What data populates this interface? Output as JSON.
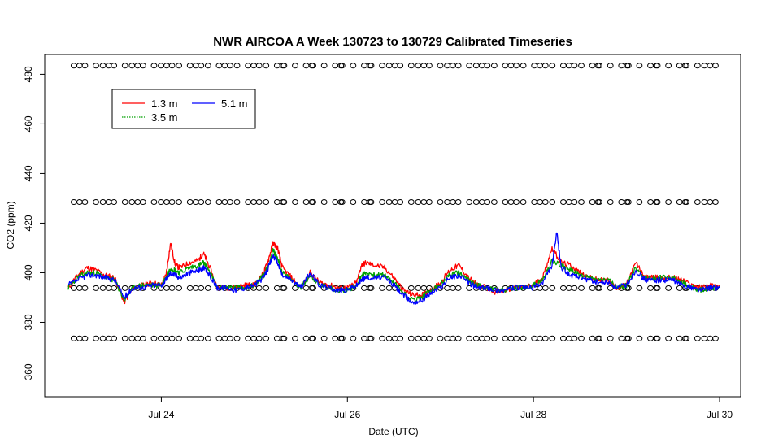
{
  "chart_data": {
    "type": "line",
    "title": "NWR AIRCOA A  Week 130723 to 130729  Calibrated Timeseries",
    "xlabel": "Date (UTC)",
    "ylabel": "CO2 (ppm)",
    "x_unit": "days (Jul 2013)",
    "xlim": [
      23.0,
      30.0
    ],
    "ylim": [
      350,
      488
    ],
    "x_ticks": [
      {
        "value": 24,
        "label": "Jul 24"
      },
      {
        "value": 26,
        "label": "Jul 26"
      },
      {
        "value": 28,
        "label": "Jul 28"
      },
      {
        "value": 30,
        "label": "Jul 30"
      }
    ],
    "y_ticks": [
      360,
      380,
      400,
      420,
      440,
      460,
      480
    ],
    "grid": false,
    "legend": {
      "placement": "top-left",
      "entries": [
        {
          "name": "1.3 m",
          "color": "#ff0000"
        },
        {
          "name": "3.5 m",
          "color": "#00a000",
          "style": "dotted"
        },
        {
          "name": "5.1 m",
          "color": "#0000ff"
        }
      ]
    },
    "calibration_levels": [
      483.5,
      428.5,
      393.8,
      373.5
    ],
    "calibration_marker": "open-circle",
    "series": [
      {
        "name": "1.3 m",
        "color": "#ff0000",
        "x": [
          23.0,
          23.1,
          23.2,
          23.3,
          23.4,
          23.5,
          23.6,
          23.7,
          23.8,
          23.9,
          24.0,
          24.05,
          24.1,
          24.15,
          24.2,
          24.3,
          24.4,
          24.45,
          24.5,
          24.6,
          24.7,
          24.8,
          24.9,
          25.0,
          25.1,
          25.15,
          25.2,
          25.25,
          25.3,
          25.4,
          25.5,
          25.6,
          25.7,
          25.8,
          25.9,
          26.0,
          26.1,
          26.15,
          26.2,
          26.3,
          26.4,
          26.5,
          26.6,
          26.7,
          26.8,
          26.9,
          27.0,
          27.1,
          27.2,
          27.3,
          27.4,
          27.5,
          27.6,
          27.7,
          27.8,
          27.9,
          28.0,
          28.1,
          28.2,
          28.3,
          28.4,
          28.5,
          28.6,
          28.7,
          28.8,
          28.9,
          29.0,
          29.1,
          29.2,
          29.3,
          29.4,
          29.5,
          29.6,
          29.7,
          29.8,
          29.9,
          30.0
        ],
        "y": [
          394,
          399,
          402,
          401,
          399,
          398,
          388,
          394,
          395,
          396,
          395,
          399,
          412,
          403,
          402,
          404,
          405,
          408,
          404,
          394,
          394,
          394,
          395,
          395,
          400,
          405,
          412,
          410,
          402,
          398,
          394,
          400,
          396,
          395,
          394,
          394,
          396,
          403,
          404,
          403,
          402,
          398,
          393,
          391,
          391,
          393,
          396,
          401,
          403,
          398,
          395,
          394,
          392,
          393,
          394,
          394,
          395,
          398,
          410,
          404,
          403,
          400,
          398,
          397,
          397,
          394,
          395,
          404,
          398,
          398,
          398,
          398,
          397,
          395,
          394,
          395,
          394
        ]
      },
      {
        "name": "3.5 m",
        "color": "#00a000",
        "x": [
          23.0,
          23.1,
          23.2,
          23.3,
          23.4,
          23.5,
          23.6,
          23.7,
          23.8,
          23.9,
          24.0,
          24.05,
          24.1,
          24.15,
          24.2,
          24.3,
          24.4,
          24.45,
          24.5,
          24.6,
          24.7,
          24.8,
          24.9,
          25.0,
          25.1,
          25.15,
          25.2,
          25.25,
          25.3,
          25.4,
          25.5,
          25.6,
          25.7,
          25.8,
          25.9,
          26.0,
          26.1,
          26.15,
          26.2,
          26.3,
          26.4,
          26.5,
          26.6,
          26.7,
          26.8,
          26.9,
          27.0,
          27.1,
          27.2,
          27.3,
          27.4,
          27.5,
          27.6,
          27.7,
          27.8,
          27.9,
          28.0,
          28.1,
          28.2,
          28.3,
          28.4,
          28.5,
          28.6,
          28.7,
          28.8,
          28.9,
          29.0,
          29.1,
          29.2,
          29.3,
          29.4,
          29.5,
          29.6,
          29.7,
          29.8,
          29.9,
          30.0
        ],
        "y": [
          394,
          398,
          400,
          400,
          398,
          397,
          389,
          394,
          395,
          395,
          395,
          398,
          402,
          401,
          400,
          402,
          403,
          404,
          402,
          394,
          394,
          394,
          394,
          395,
          399,
          403,
          409,
          406,
          400,
          397,
          394,
          399,
          395,
          394,
          393,
          393,
          395,
          399,
          400,
          399,
          399,
          396,
          392,
          389,
          390,
          393,
          395,
          399,
          400,
          397,
          395,
          394,
          393,
          393,
          394,
          394,
          395,
          397,
          405,
          403,
          401,
          399,
          398,
          397,
          397,
          394,
          395,
          402,
          398,
          398,
          398,
          398,
          396,
          394,
          393,
          394,
          394
        ]
      },
      {
        "name": "5.1 m",
        "color": "#0000ff",
        "x": [
          23.0,
          23.1,
          23.2,
          23.3,
          23.4,
          23.5,
          23.6,
          23.7,
          23.8,
          23.9,
          24.0,
          24.05,
          24.1,
          24.15,
          24.2,
          24.3,
          24.4,
          24.45,
          24.5,
          24.6,
          24.7,
          24.8,
          24.9,
          25.0,
          25.1,
          25.15,
          25.2,
          25.25,
          25.3,
          25.4,
          25.5,
          25.6,
          25.7,
          25.8,
          25.9,
          26.0,
          26.1,
          26.15,
          26.2,
          26.3,
          26.4,
          26.5,
          26.6,
          26.7,
          26.8,
          26.9,
          27.0,
          27.1,
          27.2,
          27.3,
          27.4,
          27.5,
          27.6,
          27.7,
          27.8,
          27.9,
          28.0,
          28.1,
          28.2,
          28.25,
          28.3,
          28.4,
          28.5,
          28.6,
          28.7,
          28.8,
          28.9,
          29.0,
          29.1,
          29.2,
          29.3,
          29.4,
          29.5,
          29.6,
          29.7,
          29.8,
          29.9,
          30.0
        ],
        "y": [
          395,
          397,
          399,
          399,
          398,
          397,
          390,
          394,
          394,
          395,
          395,
          397,
          400,
          399,
          398,
          400,
          401,
          402,
          400,
          394,
          394,
          393,
          394,
          395,
          398,
          402,
          407,
          404,
          399,
          397,
          394,
          400,
          395,
          394,
          393,
          393,
          395,
          397,
          398,
          398,
          398,
          395,
          391,
          388,
          389,
          392,
          394,
          398,
          399,
          396,
          394,
          394,
          393,
          393,
          394,
          394,
          394,
          396,
          403,
          416,
          402,
          399,
          398,
          397,
          396,
          396,
          394,
          395,
          401,
          397,
          397,
          397,
          397,
          395,
          394,
          393,
          394,
          394
        ]
      }
    ]
  }
}
